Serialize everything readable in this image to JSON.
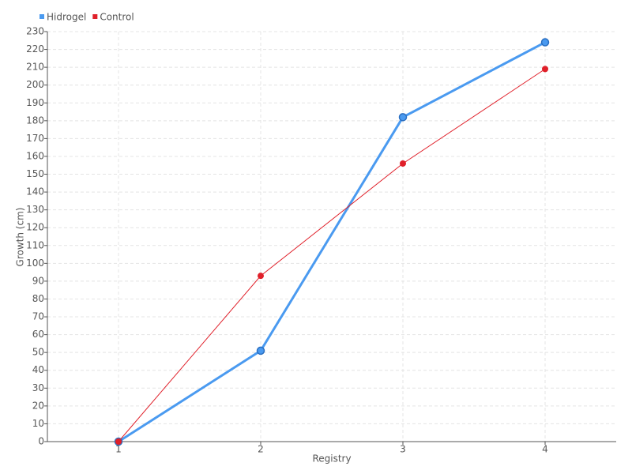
{
  "chart_data": {
    "type": "line",
    "x_label": "Registry",
    "y_label": "Growth (cm)",
    "categories": [
      "1",
      "2",
      "3",
      "4"
    ],
    "series": [
      {
        "name": "Hidrogel",
        "color": "#4a9af0",
        "values": [
          0,
          51,
          182,
          224
        ]
      },
      {
        "name": "Control",
        "color": "#e0202a",
        "values": [
          0,
          93,
          156,
          209
        ]
      }
    ],
    "ylim": [
      0,
      230
    ],
    "yticks": [
      0,
      10,
      20,
      30,
      40,
      50,
      60,
      70,
      80,
      90,
      100,
      110,
      120,
      130,
      140,
      150,
      160,
      170,
      180,
      190,
      200,
      210,
      220,
      230
    ],
    "grid": true,
    "legend": "top-left"
  }
}
